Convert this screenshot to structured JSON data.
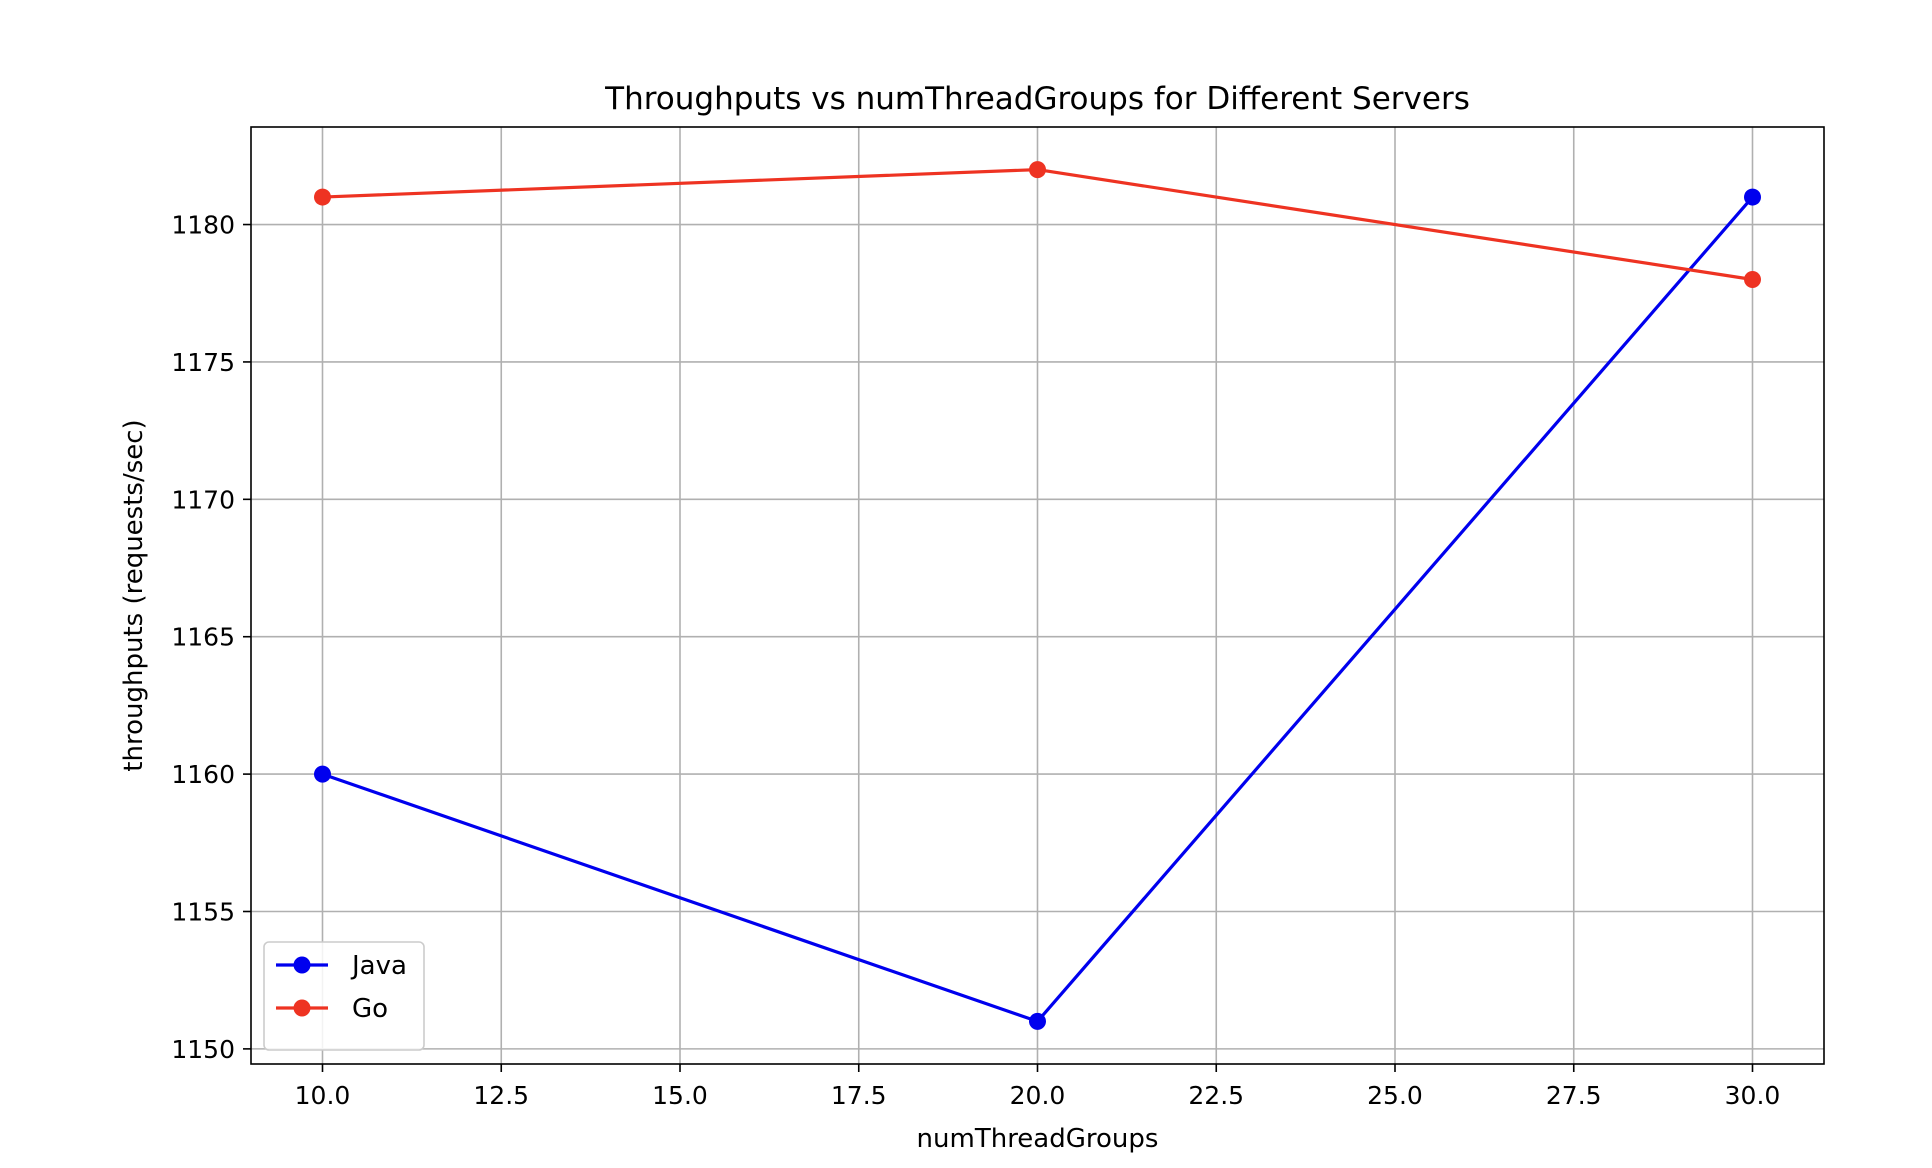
{
  "chart_data": {
    "type": "line",
    "title": "Throughputs vs numThreadGroups for Different Servers",
    "xlabel": "numThreadGroups",
    "ylabel": "throughputs (requests/sec)",
    "x": [
      10,
      20,
      30
    ],
    "series": [
      {
        "name": "Java",
        "color": "#0000ee",
        "marker": "circle",
        "values": [
          1160,
          1151,
          1181
        ]
      },
      {
        "name": "Go",
        "color": "#ee3322",
        "marker": "circle",
        "values": [
          1181,
          1182,
          1178
        ]
      }
    ],
    "xlim": [
      9,
      31
    ],
    "ylim": [
      1149.45,
      1183.55
    ],
    "xticks": [
      10.0,
      12.5,
      15.0,
      17.5,
      20.0,
      22.5,
      25.0,
      27.5,
      30.0
    ],
    "xtick_labels": [
      "10.0",
      "12.5",
      "15.0",
      "17.5",
      "20.0",
      "22.5",
      "25.0",
      "27.5",
      "30.0"
    ],
    "yticks": [
      1150,
      1155,
      1160,
      1165,
      1170,
      1175,
      1180
    ],
    "ytick_labels": [
      "1150",
      "1155",
      "1160",
      "1165",
      "1170",
      "1175",
      "1180"
    ],
    "grid": true,
    "legend": "lower-left"
  }
}
